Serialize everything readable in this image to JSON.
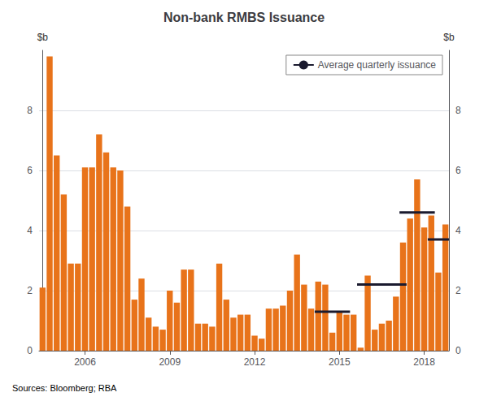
{
  "chart_data": {
    "type": "bar",
    "title": "Non-bank RMBS Issuance",
    "ylabel": "$b",
    "y2label": "$b",
    "annotations": [
      "Sources: Bloomberg; RBA"
    ],
    "categories": [
      null,
      null,
      null,
      null,
      null,
      null,
      "2006",
      null,
      null,
      null,
      null,
      null,
      null,
      null,
      null,
      null,
      null,
      null,
      "2009",
      null,
      null,
      null,
      null,
      null,
      null,
      null,
      null,
      null,
      null,
      null,
      "2012",
      null,
      null,
      null,
      null,
      null,
      null,
      null,
      null,
      null,
      null,
      null,
      "2015",
      null,
      null,
      null,
      null,
      null,
      null,
      null,
      null,
      null,
      null,
      null,
      "2018",
      null,
      null,
      null
    ],
    "series": [
      {
        "type": "bar",
        "color": "#E8731A",
        "values": [
          2.1,
          9.8,
          6.5,
          5.2,
          2.9,
          2.9,
          6.1,
          6.1,
          7.2,
          6.6,
          6.1,
          6.0,
          4.8,
          1.7,
          2.4,
          1.1,
          0.8,
          0.7,
          2.0,
          1.6,
          2.7,
          2.7,
          0.9,
          0.9,
          0.8,
          2.9,
          1.7,
          1.1,
          1.2,
          1.2,
          0.5,
          0.4,
          1.4,
          1.4,
          1.5,
          2.0,
          3.2,
          2.2,
          1.4,
          2.3,
          2.2,
          0.6,
          1.3,
          1.2,
          1.2,
          0.1,
          2.5,
          0.7,
          0.9,
          1.0,
          1.8,
          3.6,
          4.4,
          5.7,
          4.1,
          4.5,
          2.6,
          4.2
        ]
      },
      {
        "type": "line",
        "name": "Average quarterly issuance",
        "color": "#1a1a2e",
        "segments": [
          {
            "x_start": 38.5,
            "x_end": 43.5,
            "y": 1.3
          },
          {
            "x_start": 44.5,
            "x_end": 51.5,
            "y": 2.2
          },
          {
            "x_start": 50.5,
            "x_end": 55.5,
            "y": 4.6
          },
          {
            "x_start": 54.5,
            "x_end": 57.5,
            "y": 3.7
          }
        ]
      }
    ],
    "ylim": [
      0,
      10
    ],
    "yticks": [
      0,
      2,
      4,
      6,
      8
    ],
    "y2lim": [
      0,
      10
    ],
    "y2ticks": [
      0,
      2,
      4,
      6,
      8
    ],
    "grid": true,
    "legend": "upper right"
  }
}
